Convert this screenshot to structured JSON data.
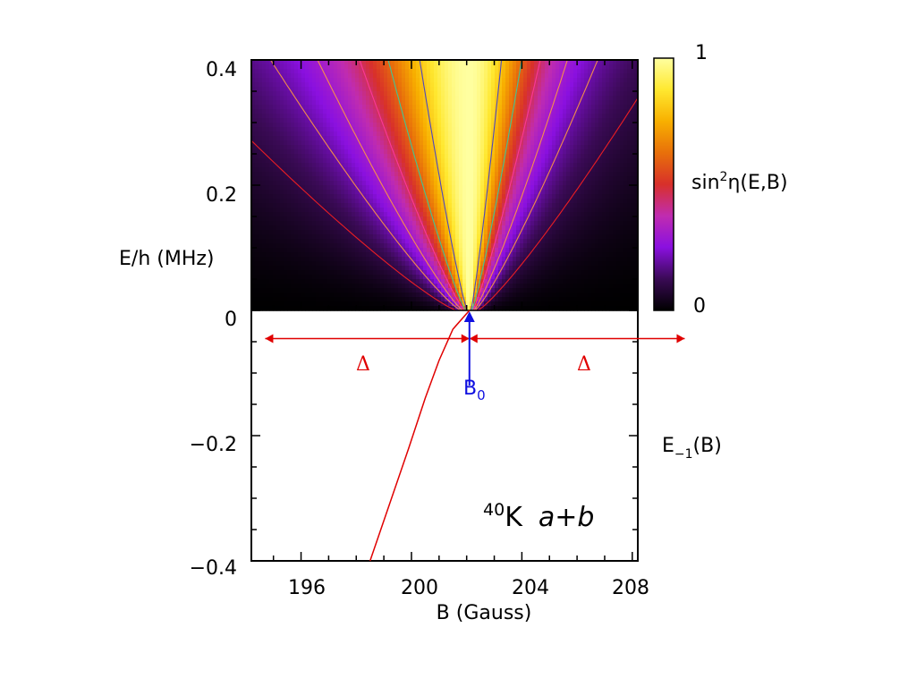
{
  "chart_data": {
    "type": "heatmap",
    "xlabel": "B (Gauss)",
    "ylabel": "E/h (MHz)",
    "xlim": [
      194.2,
      208.2
    ],
    "ylim": [
      -0.4,
      0.4
    ],
    "x_ticks": [
      "196",
      "200",
      "204",
      "208"
    ],
    "y_ticks": [
      "0.4",
      "0.2",
      "0",
      "−0.2",
      "−0.4"
    ],
    "heatmap": {
      "quantity": "sin²η(E,B)",
      "region": "E > 0",
      "colorbar_label_main": "sin",
      "colorbar_label_sup": "2",
      "colorbar_label_rest": "η(E,B)",
      "colorbar_max_label": "1",
      "colorbar_min_label": "0",
      "colormap": [
        "#000000",
        "#3a0a55",
        "#8a10e0",
        "#c02cb0",
        "#d8302a",
        "#e8700a",
        "#f8b000",
        "#ffe830",
        "#ffffa0"
      ],
      "resonance_B": 202.1
    },
    "bound_state_curve": {
      "label_main": "E",
      "label_sub": "−1",
      "label_rest": "(B)",
      "color": "#e00000",
      "points": [
        [
          198.5,
          -0.4
        ],
        [
          199.2,
          -0.31
        ],
        [
          199.9,
          -0.22
        ],
        [
          200.5,
          -0.14
        ],
        [
          201.0,
          -0.08
        ],
        [
          201.5,
          -0.03
        ],
        [
          202.1,
          0.0
        ]
      ]
    },
    "resonance_marker": {
      "label_main": "B",
      "label_sub": "0",
      "B": 202.1,
      "color": "#1010e0"
    },
    "width_arrows": {
      "label": "Δ",
      "color": "#e00000",
      "E": -0.045,
      "left": [
        194.7,
        202.1
      ],
      "right": [
        202.1,
        209.9
      ]
    },
    "annotation": {
      "isotope_sup": "40",
      "element": "K",
      "channel": "a+b"
    }
  }
}
